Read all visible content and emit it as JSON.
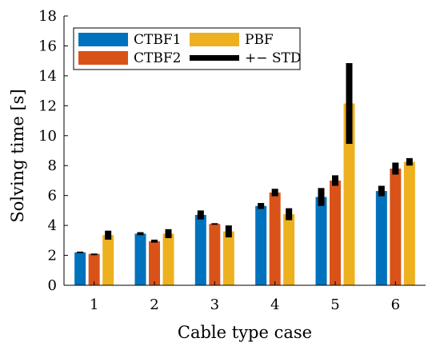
{
  "chart_data": {
    "type": "bar",
    "xlabel": "Cable type case",
    "ylabel": "Solving time [s]",
    "categories": [
      "1",
      "2",
      "3",
      "4",
      "5",
      "6"
    ],
    "ylim": [
      0,
      18
    ],
    "yticks": [
      0,
      2,
      4,
      6,
      8,
      10,
      12,
      14,
      16,
      18
    ],
    "series": [
      {
        "name": "CTBF1",
        "color": "#0072BD",
        "values": [
          2.2,
          3.45,
          4.7,
          5.3,
          5.9,
          6.3
        ],
        "std": [
          0.05,
          0.1,
          0.3,
          0.2,
          0.6,
          0.35
        ]
      },
      {
        "name": "CTBF2",
        "color": "#D95319",
        "values": [
          2.1,
          2.95,
          4.1,
          6.2,
          7.0,
          7.8
        ],
        "std": [
          0.02,
          0.1,
          0.05,
          0.25,
          0.35,
          0.4
        ]
      },
      {
        "name": "PBF",
        "color": "#EDB120",
        "values": [
          3.35,
          3.45,
          3.6,
          4.75,
          12.15,
          8.25
        ],
        "std": [
          0.3,
          0.3,
          0.4,
          0.4,
          2.7,
          0.25
        ]
      }
    ],
    "std_legend": "+− STD",
    "std_color": "#000000",
    "legend_position": "top-left",
    "grid": false
  }
}
